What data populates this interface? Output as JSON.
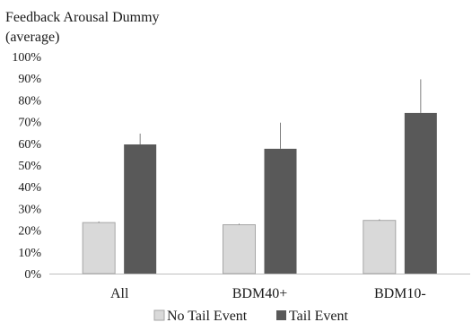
{
  "chart_data": {
    "type": "bar",
    "title": [
      "Feedback Arousal Dummy",
      "(average)"
    ],
    "xlabel": "",
    "ylabel": "",
    "categories": [
      "All",
      "BDM40+",
      "BDM10-"
    ],
    "yticks": [
      "0%",
      "10%",
      "20%",
      "30%",
      "40%",
      "50%",
      "60%",
      "70%",
      "80%",
      "90%",
      "100%"
    ],
    "ylim": [
      0,
      1
    ],
    "grid": false,
    "legend_position": "bottom",
    "series": [
      {
        "name": "No Tail Event",
        "color": "#d9d9d9",
        "values": [
          0.235,
          0.225,
          0.245
        ],
        "error_upper": [
          0.24,
          0.23,
          0.25
        ]
      },
      {
        "name": "Tail Event",
        "color": "#595959",
        "values": [
          0.595,
          0.575,
          0.74
        ],
        "error_upper": [
          0.645,
          0.695,
          0.895
        ]
      }
    ]
  }
}
